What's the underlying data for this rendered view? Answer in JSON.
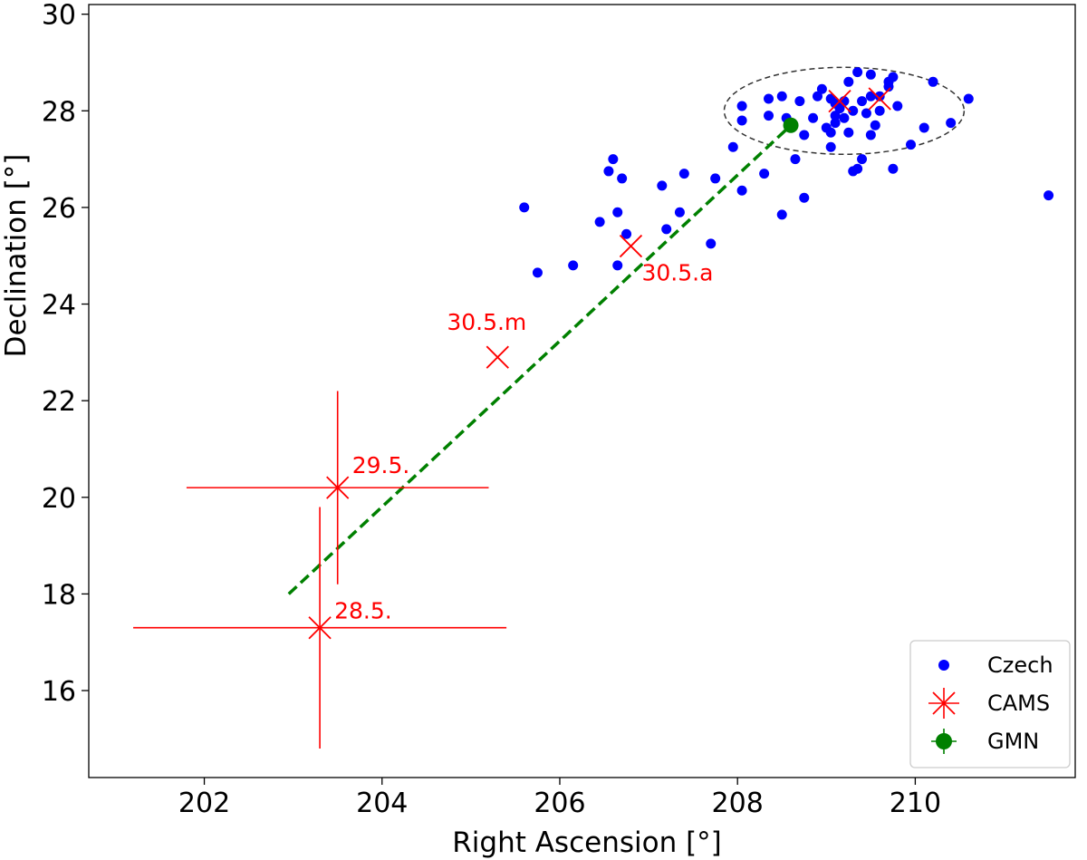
{
  "chart_data": {
    "type": "scatter",
    "xlabel": "Right Ascension [°]",
    "ylabel": "Declination [°]",
    "xlim": [
      200.7,
      211.8
    ],
    "ylim": [
      14.2,
      30.2
    ],
    "xticks": [
      202,
      204,
      206,
      208,
      210
    ],
    "yticks": [
      16,
      18,
      20,
      22,
      24,
      26,
      28,
      30
    ],
    "grid": false,
    "legend_position": "lower-right",
    "colors": {
      "czech": "#0000ff",
      "cams": "#ff0000",
      "gmn": "#008000",
      "fit": "#008000",
      "ellipse": "#333333"
    },
    "series": [
      {
        "name": "Czech",
        "marker": "dot",
        "points": [
          [
            205.6,
            26.0
          ],
          [
            205.75,
            24.65
          ],
          [
            206.15,
            24.8
          ],
          [
            206.45,
            25.7
          ],
          [
            206.55,
            26.75
          ],
          [
            206.6,
            27.0
          ],
          [
            206.65,
            25.9
          ],
          [
            206.7,
            26.6
          ],
          [
            206.65,
            24.8
          ],
          [
            206.75,
            25.45
          ],
          [
            207.15,
            26.45
          ],
          [
            207.2,
            25.55
          ],
          [
            207.35,
            25.9
          ],
          [
            207.4,
            26.7
          ],
          [
            207.7,
            25.25
          ],
          [
            207.75,
            26.6
          ],
          [
            207.95,
            27.25
          ],
          [
            208.05,
            26.35
          ],
          [
            208.05,
            27.8
          ],
          [
            208.05,
            28.1
          ],
          [
            208.3,
            26.7
          ],
          [
            208.35,
            27.9
          ],
          [
            208.35,
            28.25
          ],
          [
            208.5,
            28.3
          ],
          [
            208.5,
            25.85
          ],
          [
            208.55,
            27.85
          ],
          [
            208.65,
            27.0
          ],
          [
            208.7,
            28.2
          ],
          [
            208.75,
            27.5
          ],
          [
            208.75,
            26.2
          ],
          [
            208.85,
            27.85
          ],
          [
            208.9,
            28.3
          ],
          [
            208.95,
            28.45
          ],
          [
            209.0,
            27.65
          ],
          [
            209.05,
            27.55
          ],
          [
            209.05,
            27.25
          ],
          [
            209.05,
            28.25
          ],
          [
            209.1,
            27.75
          ],
          [
            209.1,
            28.15
          ],
          [
            209.1,
            27.9
          ],
          [
            209.15,
            28.05
          ],
          [
            209.2,
            28.2
          ],
          [
            209.2,
            27.85
          ],
          [
            209.25,
            27.55
          ],
          [
            209.25,
            28.6
          ],
          [
            209.3,
            28.0
          ],
          [
            209.3,
            26.75
          ],
          [
            209.35,
            26.8
          ],
          [
            209.35,
            28.8
          ],
          [
            209.4,
            28.2
          ],
          [
            209.4,
            27.0
          ],
          [
            209.45,
            27.95
          ],
          [
            209.5,
            28.3
          ],
          [
            209.5,
            27.5
          ],
          [
            209.5,
            28.75
          ],
          [
            209.55,
            27.7
          ],
          [
            209.6,
            28.3
          ],
          [
            209.6,
            28.0
          ],
          [
            209.7,
            28.5
          ],
          [
            209.7,
            28.6
          ],
          [
            209.75,
            28.7
          ],
          [
            209.75,
            26.8
          ],
          [
            209.8,
            28.1
          ],
          [
            209.95,
            27.3
          ],
          [
            210.1,
            27.65
          ],
          [
            210.2,
            28.6
          ],
          [
            210.4,
            27.75
          ],
          [
            210.6,
            28.25
          ],
          [
            211.5,
            26.25
          ]
        ]
      },
      {
        "name": "CAMS",
        "marker": "x",
        "points": [
          {
            "x": 206.8,
            "y": 25.2,
            "label": "30.5.a"
          },
          {
            "x": 205.3,
            "y": 22.9,
            "label": "30.5.m"
          },
          {
            "x": 203.5,
            "y": 20.2,
            "label": "29.5.",
            "xerr": [
              201.8,
              205.2
            ],
            "yerr": [
              18.2,
              22.2
            ]
          },
          {
            "x": 203.3,
            "y": 17.3,
            "label": "28.5.",
            "xerr": [
              201.2,
              205.4
            ],
            "yerr": [
              14.8,
              19.8
            ]
          },
          {
            "x": 209.15,
            "y": 28.2,
            "label": ""
          },
          {
            "x": 209.6,
            "y": 28.25,
            "label": ""
          }
        ]
      },
      {
        "name": "GMN",
        "marker": "big-dot",
        "points": [
          [
            208.6,
            27.7
          ]
        ]
      }
    ],
    "fit_line": {
      "x": [
        202.95,
        208.6
      ],
      "y": [
        18.0,
        27.7
      ]
    },
    "ellipse": {
      "cx": 209.2,
      "cy": 28.0,
      "rx": 1.35,
      "ry": 0.9
    }
  }
}
